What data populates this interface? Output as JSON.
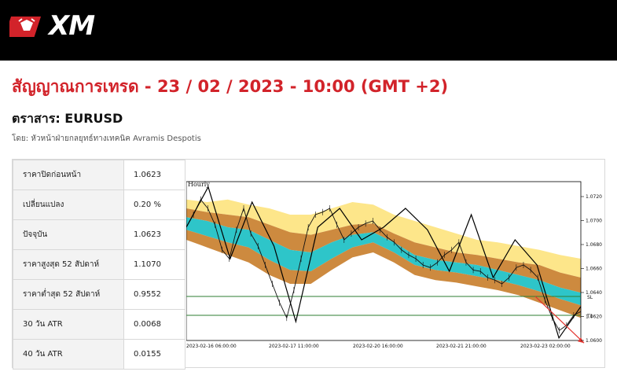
{
  "header": {
    "logo_text": "XM"
  },
  "page": {
    "title": "สัญญาณการเทรด - 23 / 02 / 2023 - 10:00 (GMT +2)",
    "instrument": "ตราสาร: EURUSD",
    "author": "โดย: หัวหน้าฝ่ายกลยุทธ์ทางเทคนิค Avramis Despotis"
  },
  "stats": [
    {
      "label": "ราคาปิดก่อนหน้า",
      "value": "1.0623"
    },
    {
      "label": "เปลี่ยนแปลง",
      "value": "0.20 %"
    },
    {
      "label": "ปัจจุบัน",
      "value": "1.0623"
    },
    {
      "label": "ราคาสูงสุด 52 สัปดาห์",
      "value": "1.1070"
    },
    {
      "label": "ราคาต่ำสุด 52 สัปดาห์",
      "value": "0.9552"
    },
    {
      "label": "30 วัน ATR",
      "value": "0.0068"
    },
    {
      "label": "40 วัน ATR",
      "value": "0.0155"
    }
  ],
  "chart_data": {
    "type": "line",
    "title": "Hourly",
    "y_ticks": [
      "1.0720",
      "1.0700",
      "1.0680",
      "1.0660",
      "1.0640",
      "1.0620",
      "1.0600"
    ],
    "x_ticks": [
      "2023-02-16 06:00:00",
      "2023-02-17 11:00:00",
      "2023-02-20 16:00:00",
      "2023-02-21 21:00:00",
      "2023-02-23 02:00:00"
    ],
    "ylim": [
      1.06,
      1.0725
    ],
    "levels": [
      {
        "label": "SL",
        "value": 1.0635,
        "color": "#2e7d32"
      },
      {
        "label": "T1",
        "value": 1.062,
        "color": "#2e7d32"
      }
    ],
    "zigzag": [
      1.069,
      1.0722,
      1.0665,
      1.071,
      1.0675,
      1.0615,
      1.069,
      1.0705,
      1.068,
      1.069,
      1.0705,
      1.0688,
      1.0655,
      1.07,
      1.065,
      1.068,
      1.066,
      1.0602,
      1.0627
    ],
    "price": [
      1.069,
      1.07,
      1.0712,
      1.0705,
      1.0692,
      1.0672,
      1.0665,
      1.0688,
      1.0705,
      1.0685,
      1.0675,
      1.066,
      1.0645,
      1.063,
      1.0618,
      1.064,
      1.0665,
      1.069,
      1.07,
      1.0702,
      1.0705,
      1.0692,
      1.068,
      1.0685,
      1.069,
      1.0693,
      1.0695,
      1.0688,
      1.0682,
      1.0678,
      1.0672,
      1.0668,
      1.0665,
      1.066,
      1.0658,
      1.0662,
      1.0668,
      1.0672,
      1.0678,
      1.0662,
      1.0656,
      1.0655,
      1.065,
      1.0648,
      1.0645,
      1.065,
      1.0658,
      1.066,
      1.0656,
      1.065,
      1.0632,
      1.0618,
      1.0608,
      1.0612,
      1.062,
      1.0623
    ],
    "bands": {
      "yellow_top": [
        1.0712,
        1.071,
        1.0712,
        1.0708,
        1.0705,
        1.07,
        1.07,
        1.0705,
        1.071,
        1.0708,
        1.07,
        1.0695,
        1.069,
        1.0685,
        1.068,
        1.0678,
        1.0675,
        1.0672,
        1.0668,
        1.0665
      ],
      "orange_top": [
        1.0705,
        1.0702,
        1.07,
        1.0698,
        1.0692,
        1.0686,
        1.0684,
        1.0688,
        1.0692,
        1.0693,
        1.0685,
        1.0678,
        1.0674,
        1.067,
        1.0668,
        1.0665,
        1.0662,
        1.066,
        1.0654,
        1.065
      ],
      "teal_top": [
        1.0698,
        1.0695,
        1.069,
        1.0688,
        1.068,
        1.0672,
        1.067,
        1.0678,
        1.0684,
        1.0686,
        1.0678,
        1.0668,
        1.0664,
        1.0662,
        1.066,
        1.0656,
        1.0652,
        1.0648,
        1.0642,
        1.0638
      ],
      "teal_bottom": [
        1.0688,
        1.0683,
        1.0678,
        1.0674,
        1.0664,
        1.0656,
        1.0655,
        1.0665,
        1.0674,
        1.0678,
        1.067,
        1.066,
        1.0656,
        1.0654,
        1.0651,
        1.0648,
        1.0644,
        1.0639,
        1.0633,
        1.0628
      ],
      "orange_bottom": [
        1.068,
        1.0674,
        1.0668,
        1.0662,
        1.0652,
        1.0645,
        1.0645,
        1.0656,
        1.0666,
        1.067,
        1.0662,
        1.0652,
        1.0648,
        1.0646,
        1.0643,
        1.064,
        1.0636,
        1.063,
        1.0624,
        1.0618
      ]
    },
    "colors": {
      "yellow": "#fde68a",
      "orange": "#cd8a3f",
      "teal": "#2ec5c9",
      "price": "#111111",
      "zigzag": "#000000",
      "arrow": "#e3342f"
    }
  }
}
